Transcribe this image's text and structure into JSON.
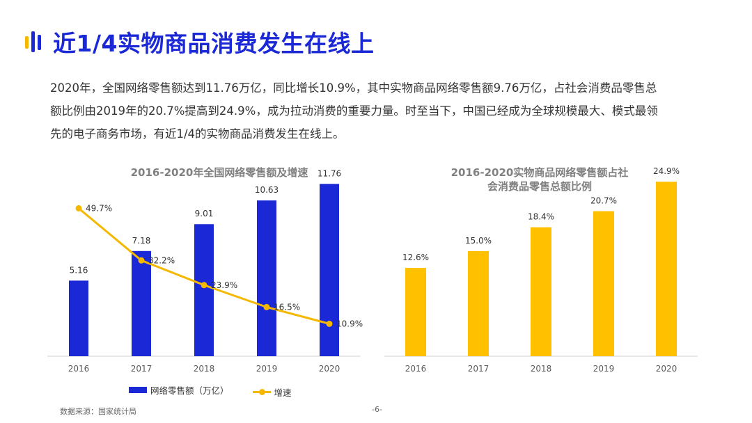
{
  "header": {
    "title": "近1/4实物商品消费发生在线上"
  },
  "intro": {
    "lines": [
      "2020年，全国网络零售额达到11.76万亿，同比增长10.9%，其中实物商品网络零售额9.76万亿，占社会消费品零售总",
      "额比例由2019年的20.7%提高到24.9%，成为拉动消费的重要力量。时至当下，中国已经成为全球规模最大、模式最领",
      "先的电子商务市场，有近1/4的实物商品消费发生在线上。"
    ]
  },
  "chart_data": [
    {
      "type": "bar",
      "title": "2016-2020年全国网络零售额及增速",
      "categories": [
        "2016",
        "2017",
        "2018",
        "2019",
        "2020"
      ],
      "series": [
        {
          "name": "网络零售额（万亿）",
          "type": "bar",
          "values": [
            5.16,
            7.18,
            9.01,
            10.63,
            11.76
          ],
          "labels": [
            "5.16",
            "7.18",
            "9.01",
            "10.63",
            "11.76"
          ],
          "color": "#1a28d6"
        },
        {
          "name": "增速",
          "type": "line",
          "values": [
            49.7,
            32.2,
            23.9,
            16.5,
            10.9
          ],
          "labels": [
            "49.7%",
            "32.2%",
            "23.9%",
            "16.5%",
            "10.9%"
          ],
          "color": "#f5b800"
        }
      ],
      "ylim": [
        0,
        13.2
      ],
      "y2lim": [
        0,
        65
      ],
      "legend": "bottom"
    },
    {
      "type": "bar",
      "title": "2016-2020实物商品网络零售额占社会消费品零售总额比例",
      "title_lines": [
        "2016-2020实物商品网络零售额占社",
        "会消费品零售总额比例"
      ],
      "categories": [
        "2016",
        "2017",
        "2018",
        "2019",
        "2020"
      ],
      "values": [
        12.6,
        15.0,
        18.4,
        20.7,
        24.9
      ],
      "labels": [
        "12.6%",
        "15.0%",
        "18.4%",
        "20.7%",
        "24.9%"
      ],
      "color": "#ffc000",
      "ylim": [
        0,
        27.6
      ]
    }
  ],
  "footer": {
    "source": "数据来源：国家统计局",
    "page_number": "-6-"
  }
}
